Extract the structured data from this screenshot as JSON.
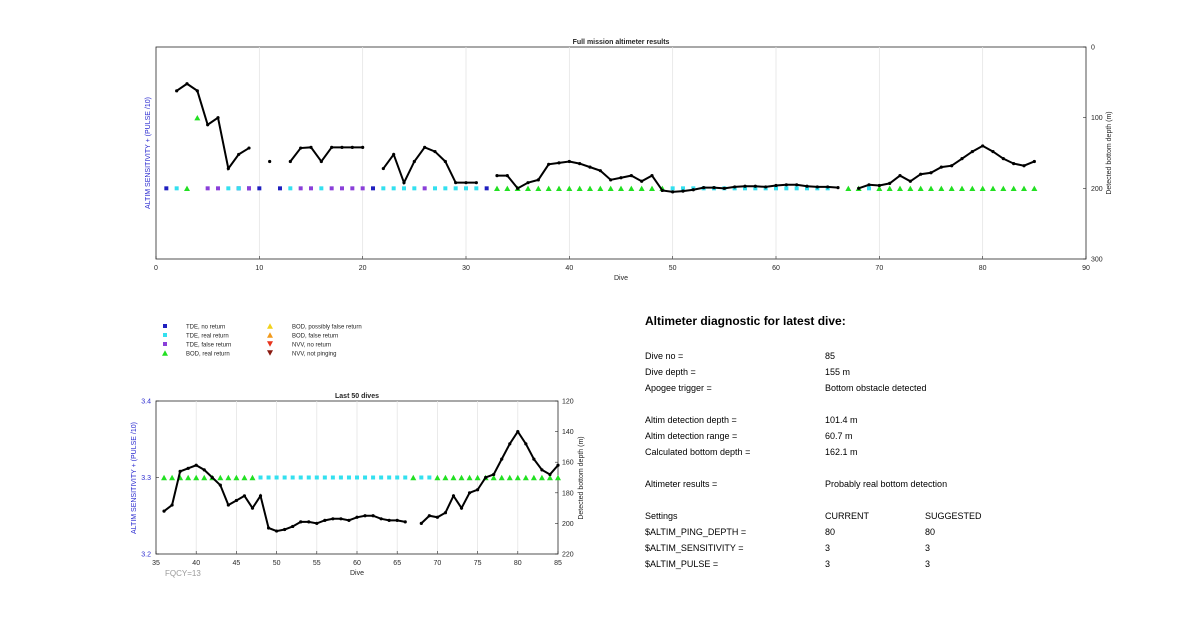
{
  "top_chart": {
    "title": "Full mission altimeter results",
    "xlabel": "Dive",
    "ylabel_left": "ALTIM SENSITIVITY + (PULSE /10)",
    "ylabel_right": "Detected bottom depth (m)",
    "x_ticks": [
      "0",
      "10",
      "20",
      "30",
      "40",
      "50",
      "60",
      "70",
      "80",
      "90"
    ],
    "y_ticks": [
      "0",
      "100",
      "200",
      "300"
    ]
  },
  "bottom_chart": {
    "title": "Last 50 dives",
    "xlabel": "Dive",
    "ylabel_left": "ALTIM SENSITIVITY + (PULSE /10)",
    "ylabel_right": "Detected bottom depth (m)",
    "x_ticks": [
      "35",
      "40",
      "45",
      "50",
      "55",
      "60",
      "65",
      "70",
      "75",
      "80",
      "85"
    ],
    "y_left_ticks": [
      "3.4",
      "3.3",
      "3.2"
    ],
    "y_right_ticks": [
      "120",
      "140",
      "160",
      "180",
      "200",
      "220"
    ],
    "fqcy": "FQCY=13"
  },
  "legend": {
    "items": [
      {
        "label": "TDE, no return",
        "color": "#1f1fbf",
        "shape": "square"
      },
      {
        "label": "TDE, real return",
        "color": "#33e0ef",
        "shape": "square"
      },
      {
        "label": "TDE, false return",
        "color": "#8a3fd9",
        "shape": "square"
      },
      {
        "label": "BOD, real return",
        "color": "#22e022",
        "shape": "triangle-up"
      },
      {
        "label": "BOD, possibly false return",
        "color": "#f2d21b",
        "shape": "triangle-up"
      },
      {
        "label": "BOD, false return",
        "color": "#f29a1b",
        "shape": "triangle-up"
      },
      {
        "label": "NVV, no return",
        "color": "#e8341c",
        "shape": "triangle-down"
      },
      {
        "label": "NVV, not pinging",
        "color": "#8a1a10",
        "shape": "triangle-down"
      }
    ]
  },
  "diagnostic": {
    "title": "Altimeter diagnostic for latest dive:",
    "dive_no_label": "Dive no =",
    "dive_no": "85",
    "dive_depth_label": "Dive depth =",
    "dive_depth": "155 m",
    "apogee_label": "Apogee trigger =",
    "apogee": "Bottom obstacle detected",
    "det_depth_label": "Altim detection depth =",
    "det_depth": "101.4 m",
    "det_range_label": "Altim detection range =",
    "det_range": "60.7 m",
    "calc_depth_label": "Calculated bottom depth =",
    "calc_depth": "162.1 m",
    "results_label": "Altimeter results =",
    "results": "Probably real bottom detection",
    "settings_label": "Settings",
    "current_label": "CURRENT",
    "suggested_label": "SUGGESTED",
    "ping_label": "$ALTIM_PING_DEPTH =",
    "ping_cur": "80",
    "ping_sug": "80",
    "sens_label": "$ALTIM_SENSITIVITY =",
    "sens_cur": "3",
    "sens_sug": "3",
    "pulse_label": "$ALTIM_PULSE =",
    "pulse_cur": "3",
    "pulse_sug": "3"
  },
  "chart_data": [
    {
      "type": "line",
      "title": "Full mission altimeter results",
      "xlabel": "Dive",
      "ylabel": "Detected bottom depth (m)",
      "xlim": [
        0,
        90
      ],
      "ylim": [
        0,
        300
      ],
      "y_reversed": true,
      "grid": "vertical",
      "series": [
        {
          "x": [
            2,
            3,
            4,
            5,
            6,
            7,
            8,
            9,
            11,
            13,
            14,
            15,
            16,
            17,
            18,
            19,
            20,
            22,
            23,
            24,
            25,
            26,
            27,
            28,
            29,
            30,
            31,
            33,
            34,
            35,
            36,
            37,
            38,
            39,
            40,
            41,
            42,
            43,
            44,
            45,
            46,
            47,
            48,
            49,
            50,
            51,
            52,
            53,
            54,
            55,
            56,
            57,
            58,
            59,
            60,
            61,
            62,
            63,
            64,
            65,
            66,
            68,
            69,
            70,
            71,
            72,
            73,
            74,
            75,
            76,
            77,
            78,
            79,
            80,
            81,
            82,
            83,
            84,
            85
          ],
          "y": [
            62,
            52,
            62,
            110,
            100,
            172,
            152,
            143,
            162,
            162,
            143,
            142,
            162,
            142,
            142,
            142,
            142,
            172,
            152,
            192,
            162,
            142,
            148,
            162,
            192,
            192,
            192,
            182,
            182,
            200,
            192,
            188,
            166,
            164,
            162,
            165,
            170,
            175,
            188,
            185,
            182,
            190,
            182,
            203,
            205,
            204,
            202,
            199,
            199,
            200,
            198,
            197,
            197,
            198,
            196,
            195,
            195,
            197,
            198,
            198,
            199,
            200,
            195,
            196,
            193,
            182,
            190,
            180,
            178,
            170,
            168,
            158,
            148,
            140,
            148,
            158,
            165,
            168,
            162
          ]
        }
      ],
      "markers": {
        "tde_no_return": [
          1,
          8,
          9,
          10,
          12,
          21,
          32
        ],
        "tde_real_return": [
          2,
          7,
          8,
          13,
          16,
          22,
          23,
          24,
          25,
          27,
          28,
          29,
          30,
          31,
          50,
          51,
          52,
          53,
          54,
          55,
          56,
          57,
          58,
          59,
          60,
          61,
          62,
          63,
          64,
          65,
          69
        ],
        "tde_false_return": [
          5,
          6,
          9,
          14,
          15,
          17,
          18,
          19,
          20,
          26
        ],
        "bod_real_return": [
          3,
          4,
          33,
          34,
          35,
          36,
          37,
          38,
          39,
          40,
          41,
          42,
          43,
          44,
          45,
          46,
          47,
          48,
          49,
          67,
          68,
          70,
          71,
          72,
          73,
          74,
          75,
          76,
          77,
          78,
          79,
          80,
          81,
          82,
          83,
          84,
          85
        ],
        "tde_level": 200,
        "bod_level": 200,
        "bod_dive4_level": 100
      }
    },
    {
      "type": "line",
      "title": "Last 50 dives",
      "xlabel": "Dive",
      "ylabel": "Detected bottom depth (m)",
      "xlim": [
        35,
        85
      ],
      "ylim_right": [
        120,
        220
      ],
      "ylim_left": [
        3.2,
        3.4
      ],
      "y_reversed": true,
      "grid": "vertical",
      "series": [
        {
          "x": [
            36,
            37,
            38,
            39,
            40,
            41,
            42,
            43,
            44,
            45,
            46,
            47,
            48,
            49,
            50,
            51,
            52,
            53,
            54,
            55,
            56,
            57,
            58,
            59,
            60,
            61,
            62,
            63,
            64,
            65,
            66,
            68,
            69,
            70,
            71,
            72,
            73,
            74,
            75,
            76,
            77,
            78,
            79,
            80,
            81,
            82,
            83,
            84,
            85
          ],
          "y": [
            192,
            188,
            166,
            164,
            162,
            165,
            170,
            175,
            188,
            185,
            182,
            190,
            182,
            203,
            205,
            204,
            202,
            199,
            199,
            200,
            198,
            197,
            197,
            198,
            196,
            195,
            195,
            197,
            198,
            198,
            199,
            200,
            195,
            196,
            193,
            182,
            190,
            180,
            178,
            170,
            168,
            158,
            148,
            140,
            148,
            158,
            165,
            168,
            162
          ]
        }
      ],
      "markers": {
        "tde_real_return": [
          48,
          49,
          50,
          51,
          52,
          53,
          54,
          55,
          56,
          57,
          58,
          59,
          60,
          61,
          62,
          63,
          64,
          65,
          66,
          68,
          69
        ],
        "bod_real_return": [
          36,
          37,
          38,
          39,
          40,
          41,
          42,
          43,
          44,
          45,
          46,
          47,
          67,
          70,
          71,
          72,
          73,
          74,
          75,
          76,
          77,
          78,
          79,
          80,
          81,
          82,
          83,
          84,
          85
        ],
        "level": 3.3
      }
    }
  ]
}
